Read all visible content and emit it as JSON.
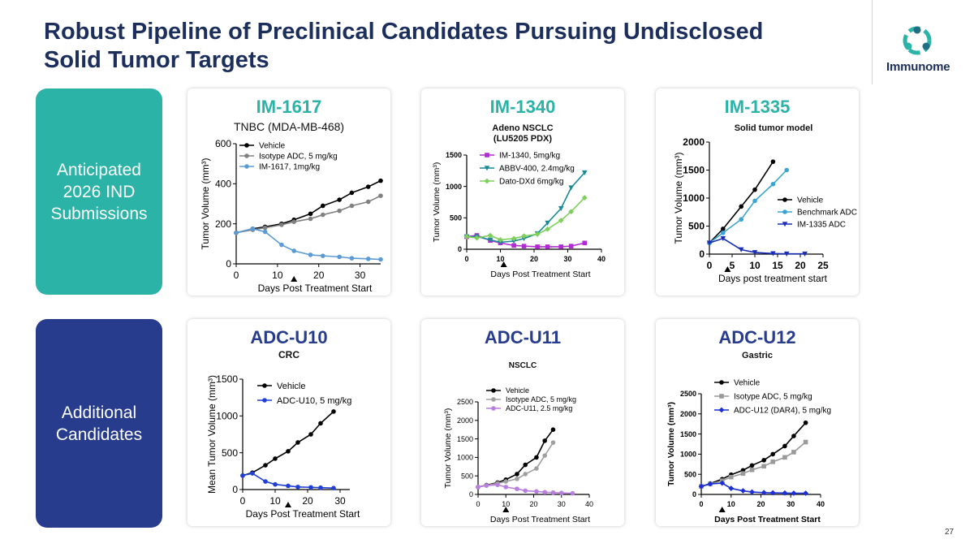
{
  "page": {
    "title": "Robust Pipeline of Preclinical Candidates Pursuing Undisclosed Solid Tumor Targets",
    "logo_text": "Immunome",
    "page_number": "27"
  },
  "sidebar": {
    "top_label": "Anticipated 2026 IND Submissions",
    "bottom_label": "Additional Candidates"
  },
  "colors": {
    "teal": "#2ab3a6",
    "navy": "#283c8e",
    "title": "#1c2e5c"
  },
  "chart_data": [
    {
      "id": "im1617",
      "type": "line",
      "title": "IM-1617",
      "subtitle": "TNBC (MDA-MB-468)",
      "xlabel": "Days Post Treatment Start",
      "ylabel": "Tumor Volume (mm³)",
      "xlim": [
        0,
        35
      ],
      "ylim": [
        0,
        600
      ],
      "xticks": [
        0,
        10,
        20,
        30
      ],
      "yticks": [
        0,
        200,
        400,
        600
      ],
      "dosing_marker": 14,
      "legend_position": "top-left",
      "series": [
        {
          "name": "Vehicle",
          "color": "#000000",
          "marker": "circle",
          "x": [
            0,
            4,
            7,
            11,
            14,
            18,
            21,
            25,
            28,
            32,
            35
          ],
          "y": [
            155,
            175,
            185,
            200,
            220,
            250,
            290,
            320,
            355,
            385,
            415
          ]
        },
        {
          "name": "Isotype ADC, 5 mg/kg",
          "color": "#808080",
          "marker": "circle",
          "x": [
            0,
            4,
            7,
            11,
            14,
            18,
            21,
            25,
            28,
            32,
            35
          ],
          "y": [
            155,
            170,
            180,
            195,
            210,
            225,
            245,
            265,
            290,
            310,
            340
          ]
        },
        {
          "name": "IM-1617, 1mg/kg",
          "color": "#5b9bd5",
          "marker": "circle",
          "x": [
            0,
            4,
            7,
            11,
            14,
            18,
            21,
            25,
            28,
            32,
            35
          ],
          "y": [
            155,
            175,
            160,
            95,
            65,
            45,
            40,
            35,
            28,
            25,
            22
          ]
        }
      ]
    },
    {
      "id": "im1340",
      "type": "line",
      "title": "IM-1340",
      "subtitle": "Adeno NSCLC (LU5205 PDX)",
      "xlabel": "Days Post Treatment Start",
      "ylabel": "Tumor Volume (mm³)",
      "xlim": [
        0,
        40
      ],
      "ylim": [
        0,
        1500
      ],
      "xticks": [
        0,
        10,
        20,
        30,
        40
      ],
      "yticks": [
        0,
        500,
        1000,
        1500
      ],
      "dosing_marker": 11,
      "legend_position": "top-left",
      "series": [
        {
          "name": "IM-1340, 5mg/kg",
          "color": "#b12ad4",
          "marker": "square",
          "x": [
            0,
            3,
            7,
            10,
            14,
            17,
            21,
            24,
            28,
            31,
            35
          ],
          "y": [
            200,
            220,
            140,
            100,
            60,
            50,
            40,
            40,
            40,
            50,
            100
          ]
        },
        {
          "name": "ABBV-400, 2.4mg/kg",
          "color": "#1a8a96",
          "marker": "triangle",
          "x": [
            0,
            3,
            7,
            10,
            14,
            17,
            21,
            24,
            28,
            31,
            35
          ],
          "y": [
            200,
            200,
            150,
            110,
            130,
            170,
            250,
            420,
            650,
            980,
            1220
          ]
        },
        {
          "name": "Dato-DXd 6mg/kg",
          "color": "#7ed05a",
          "marker": "diamond",
          "x": [
            0,
            3,
            7,
            10,
            14,
            17,
            21,
            24,
            28,
            31,
            35
          ],
          "y": [
            200,
            180,
            220,
            150,
            170,
            210,
            240,
            320,
            460,
            600,
            820
          ]
        }
      ]
    },
    {
      "id": "im1335",
      "type": "line",
      "title": "IM-1335",
      "subtitle": "Solid tumor model",
      "xlabel": "Days post treatment start",
      "ylabel": "Tumor Volume (mm³)",
      "xlim": [
        0,
        25
      ],
      "ylim": [
        0,
        2000
      ],
      "xticks": [
        0,
        5,
        10,
        15,
        20,
        25
      ],
      "yticks": [
        0,
        500,
        1000,
        1500,
        2000
      ],
      "dosing_marker": 4,
      "legend_position": "center-right",
      "series": [
        {
          "name": "Vehicle",
          "color": "#000000",
          "marker": "circle",
          "x": [
            0,
            3,
            7,
            10,
            14
          ],
          "y": [
            200,
            450,
            850,
            1150,
            1650
          ]
        },
        {
          "name": "Benchmark ADC",
          "color": "#3aa5d0",
          "marker": "circle",
          "x": [
            0,
            3,
            7,
            10,
            14,
            17
          ],
          "y": [
            200,
            380,
            620,
            950,
            1250,
            1500
          ]
        },
        {
          "name": "IM-1335 ADC",
          "color": "#1a2fb8",
          "marker": "triangle",
          "x": [
            0,
            3,
            7,
            10,
            14,
            17,
            21
          ],
          "y": [
            200,
            280,
            80,
            30,
            10,
            5,
            5
          ]
        }
      ]
    },
    {
      "id": "adcu10",
      "type": "line",
      "title": "ADC-U10",
      "subtitle": "CRC",
      "xlabel": "Days Post Treatment Start",
      "ylabel": "Mean Tumor Volume (mm³)",
      "xlim": [
        0,
        33
      ],
      "ylim": [
        0,
        1500
      ],
      "xticks": [
        0,
        10,
        20,
        30
      ],
      "yticks": [
        0,
        500,
        1000,
        1500
      ],
      "dosing_marker": 14,
      "legend_position": "top-left",
      "series": [
        {
          "name": "Vehicle",
          "color": "#000000",
          "marker": "circle",
          "x": [
            0,
            3,
            7,
            10,
            14,
            17,
            21,
            24,
            28
          ],
          "y": [
            190,
            230,
            330,
            420,
            520,
            640,
            750,
            900,
            1060
          ]
        },
        {
          "name": "ADC-U10, 5 mg/kg",
          "color": "#1f3fd6",
          "marker": "circle",
          "x": [
            0,
            3,
            7,
            10,
            14,
            17,
            21,
            24,
            28
          ],
          "y": [
            190,
            220,
            110,
            70,
            50,
            35,
            30,
            25,
            20
          ]
        }
      ]
    },
    {
      "id": "adcu11",
      "type": "line",
      "title": "ADC-U11",
      "subtitle": "NSCLC",
      "xlabel": "Days Post Treatment Start",
      "ylabel": "Tumor Volume (mm³)",
      "xlim": [
        0,
        40
      ],
      "ylim": [
        0,
        2500
      ],
      "xticks": [
        0,
        10,
        20,
        30,
        40
      ],
      "yticks": [
        0,
        500,
        1000,
        1500,
        2000,
        2500
      ],
      "dosing_marker": 10,
      "legend_position": "top-left",
      "series": [
        {
          "name": "Vehicle",
          "color": "#000000",
          "marker": "circle",
          "x": [
            0,
            3,
            7,
            10,
            14,
            17,
            21,
            24,
            27
          ],
          "y": [
            200,
            250,
            320,
            400,
            550,
            800,
            1000,
            1450,
            1750
          ]
        },
        {
          "name": "Isotype ADC, 5 mg/kg",
          "color": "#a0a0a0",
          "marker": "circle",
          "x": [
            0,
            3,
            7,
            10,
            14,
            17,
            21,
            24,
            27
          ],
          "y": [
            200,
            240,
            300,
            350,
            420,
            550,
            700,
            1050,
            1400
          ]
        },
        {
          "name": "ADC-U11, 2.5 mg/kg",
          "color": "#b87ee0",
          "marker": "circle",
          "x": [
            0,
            3,
            7,
            10,
            14,
            17,
            21,
            24,
            27,
            30,
            34
          ],
          "y": [
            200,
            240,
            260,
            200,
            150,
            100,
            80,
            60,
            50,
            40,
            30
          ]
        }
      ]
    },
    {
      "id": "adcu12",
      "type": "line",
      "title": "ADC-U12",
      "subtitle": "Gastric",
      "xlabel": "Days Post Treatment Start",
      "ylabel": "Tumor Volume (mm³)",
      "xlim": [
        0,
        40
      ],
      "ylim": [
        0,
        2500
      ],
      "xticks": [
        0,
        10,
        20,
        30,
        40
      ],
      "yticks": [
        0,
        500,
        1000,
        1500,
        2000,
        2500
      ],
      "dosing_marker": 7,
      "legend_position": "top-left",
      "series": [
        {
          "name": "Vehicle",
          "color": "#000000",
          "marker": "circle",
          "x": [
            0,
            3,
            7,
            10,
            14,
            17,
            21,
            24,
            28,
            31,
            35
          ],
          "y": [
            200,
            270,
            380,
            490,
            600,
            720,
            850,
            1000,
            1200,
            1450,
            1780
          ]
        },
        {
          "name": "Isotype ADC, 5 mg/kg",
          "color": "#9a9a9a",
          "marker": "square",
          "x": [
            0,
            3,
            7,
            10,
            14,
            17,
            21,
            24,
            28,
            31,
            35
          ],
          "y": [
            200,
            260,
            340,
            430,
            520,
            610,
            700,
            810,
            920,
            1050,
            1300
          ]
        },
        {
          "name": "ADC-U12 (DAR4), 5 mg/kg",
          "color": "#1a2fd6",
          "marker": "diamond",
          "x": [
            0,
            3,
            7,
            10,
            14,
            17,
            21,
            24,
            28,
            31,
            35
          ],
          "y": [
            200,
            260,
            280,
            150,
            90,
            60,
            45,
            40,
            35,
            30,
            30
          ]
        }
      ]
    }
  ]
}
